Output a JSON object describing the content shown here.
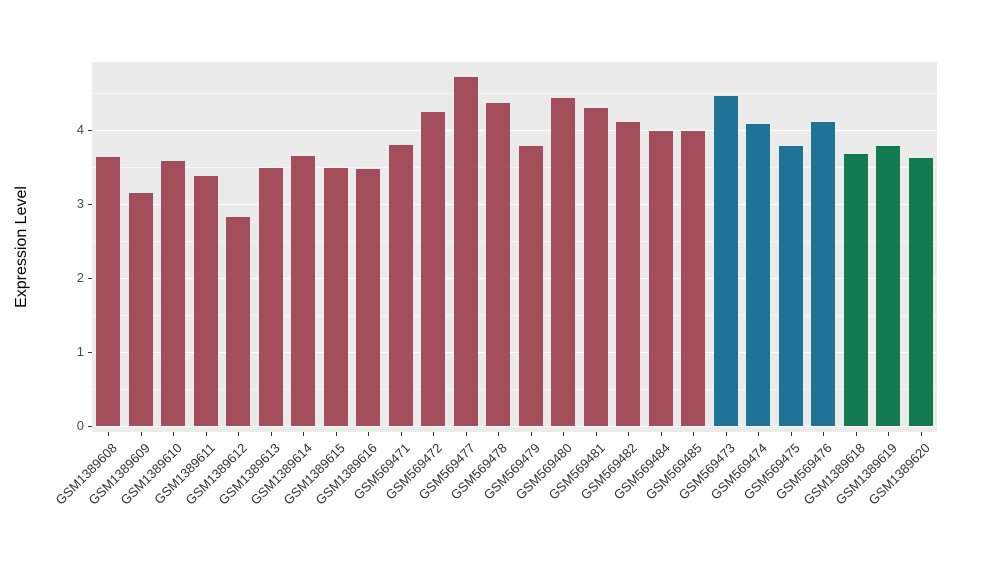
{
  "chart_data": {
    "type": "bar",
    "title": "",
    "xlabel": "",
    "ylabel": "Expression Level",
    "ylim": [
      0,
      4.9
    ],
    "yticks": [
      0,
      1,
      2,
      3,
      4
    ],
    "minor_gridlines": [
      0.5,
      1.5,
      2.5,
      3.5,
      4.5
    ],
    "grid": true,
    "legend": "none",
    "panel_background": "#EBEBEB",
    "categories": [
      "GSM1389608",
      "GSM1389609",
      "GSM1389610",
      "GSM1389611",
      "GSM1389612",
      "GSM1389613",
      "GSM1389614",
      "GSM1389615",
      "GSM1389616",
      "GSM569471",
      "GSM569472",
      "GSM569477",
      "GSM569478",
      "GSM569479",
      "GSM569480",
      "GSM569481",
      "GSM569482",
      "GSM569484",
      "GSM569485",
      "GSM569473",
      "GSM569474",
      "GSM569475",
      "GSM569476",
      "GSM1389618",
      "GSM1389619",
      "GSM1389620"
    ],
    "values": [
      3.63,
      3.15,
      3.58,
      3.38,
      2.82,
      3.48,
      3.65,
      3.48,
      3.47,
      3.8,
      4.24,
      4.72,
      4.37,
      3.78,
      4.43,
      4.3,
      4.11,
      3.99,
      3.99,
      4.46,
      4.08,
      3.78,
      4.11,
      3.68,
      3.78,
      3.62
    ],
    "groups": [
      "A",
      "A",
      "A",
      "A",
      "A",
      "A",
      "A",
      "A",
      "A",
      "A",
      "A",
      "A",
      "A",
      "A",
      "A",
      "A",
      "A",
      "A",
      "A",
      "B",
      "B",
      "B",
      "B",
      "C",
      "C",
      "C"
    ],
    "palette": {
      "A": "#A34E5A",
      "B": "#1F7396",
      "C": "#13794F"
    }
  }
}
